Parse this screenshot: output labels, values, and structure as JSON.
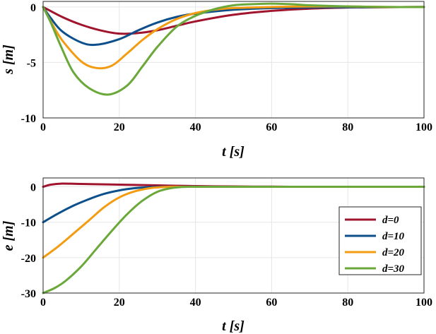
{
  "chart_data": [
    {
      "type": "line",
      "title": "",
      "xlabel": "t [s]",
      "ylabel": "s [m]",
      "xlim": [
        0,
        100
      ],
      "ylim": [
        -10,
        0.5
      ],
      "xticks": [
        0,
        20,
        40,
        60,
        80,
        100
      ],
      "yticks": [
        0,
        -5,
        -10
      ],
      "grid": true,
      "series": [
        {
          "name": "d=0",
          "color": "#a0142e",
          "x": [
            0,
            5,
            10,
            15,
            20,
            25,
            30,
            35,
            40,
            50,
            60,
            70,
            80,
            90,
            100
          ],
          "y": [
            0,
            -0.9,
            -1.6,
            -2.1,
            -2.4,
            -2.35,
            -2.1,
            -1.7,
            -1.3,
            -0.7,
            -0.35,
            -0.15,
            -0.05,
            -0.02,
            0
          ]
        },
        {
          "name": "d=10",
          "color": "#0c4f8a",
          "x": [
            0,
            2,
            5,
            10,
            14,
            20,
            25,
            30,
            35,
            40,
            50,
            60,
            70,
            80,
            90,
            100
          ],
          "y": [
            0,
            -1.0,
            -2.2,
            -3.2,
            -3.4,
            -2.9,
            -2.1,
            -1.4,
            -0.9,
            -0.6,
            -0.25,
            -0.1,
            -0.05,
            -0.02,
            -0.01,
            0
          ]
        },
        {
          "name": "d=20",
          "color": "#f39c12",
          "x": [
            0,
            2,
            5,
            10,
            14,
            18,
            22,
            26,
            30,
            35,
            40,
            45,
            50,
            60,
            70,
            80,
            90,
            100
          ],
          "y": [
            0,
            -1.3,
            -3.0,
            -4.9,
            -5.5,
            -5.3,
            -4.2,
            -3.0,
            -2.0,
            -1.1,
            -0.55,
            -0.25,
            -0.1,
            0.0,
            0.05,
            0.05,
            0.0,
            0
          ]
        },
        {
          "name": "d=30",
          "color": "#6aa83a",
          "x": [
            0,
            2,
            5,
            8,
            12,
            17,
            22,
            26,
            30,
            35,
            40,
            45,
            50,
            55,
            60,
            65,
            70,
            80,
            90,
            100
          ],
          "y": [
            0,
            -1.4,
            -3.8,
            -5.9,
            -7.3,
            -7.9,
            -7.1,
            -5.4,
            -3.6,
            -1.8,
            -0.8,
            -0.2,
            0.15,
            0.25,
            0.3,
            0.25,
            0.15,
            0.05,
            0.0,
            0
          ]
        }
      ]
    },
    {
      "type": "line",
      "title": "",
      "xlabel": "t [s]",
      "ylabel": "e [m]",
      "xlim": [
        0,
        100
      ],
      "ylim": [
        -30,
        2.5
      ],
      "xticks": [
        0,
        20,
        40,
        60,
        80,
        100
      ],
      "yticks": [
        0,
        -10,
        -20,
        -30
      ],
      "grid": true,
      "legend": "lower-right",
      "series": [
        {
          "name": "d=0",
          "color": "#a0142e",
          "x": [
            0,
            2,
            5,
            10,
            20,
            30,
            40,
            50,
            60,
            70,
            80,
            90,
            100
          ],
          "y": [
            0,
            0.6,
            0.9,
            0.8,
            0.6,
            0.4,
            0.2,
            0.1,
            0.05,
            0,
            0,
            0,
            0
          ]
        },
        {
          "name": "d=10",
          "color": "#0c4f8a",
          "x": [
            0,
            4,
            8,
            12,
            16,
            20,
            24,
            28,
            32,
            36,
            40,
            50,
            60,
            70,
            80,
            90,
            100
          ],
          "y": [
            -10,
            -7.5,
            -5.3,
            -3.5,
            -2.0,
            -1.0,
            -0.4,
            -0.1,
            0,
            0,
            0,
            0,
            0,
            0,
            0,
            0,
            0
          ]
        },
        {
          "name": "d=20",
          "color": "#f39c12",
          "x": [
            0,
            4,
            8,
            12,
            16,
            20,
            24,
            28,
            32,
            36,
            40,
            50,
            60,
            70,
            80,
            90,
            100
          ],
          "y": [
            -20,
            -16.8,
            -13.2,
            -9.5,
            -5.8,
            -3.0,
            -1.3,
            -0.4,
            -0.05,
            0,
            0,
            0,
            0,
            0,
            0,
            0,
            0
          ]
        },
        {
          "name": "d=30",
          "color": "#6aa83a",
          "x": [
            0,
            3,
            6,
            10,
            14,
            18,
            22,
            26,
            30,
            34,
            38,
            42,
            50,
            60,
            70,
            80,
            90,
            100
          ],
          "y": [
            -30,
            -28.6,
            -26.5,
            -22.5,
            -17.5,
            -12.5,
            -7.8,
            -4.0,
            -1.4,
            -0.3,
            0,
            0,
            0,
            0,
            0,
            0,
            0,
            0
          ]
        }
      ]
    }
  ]
}
